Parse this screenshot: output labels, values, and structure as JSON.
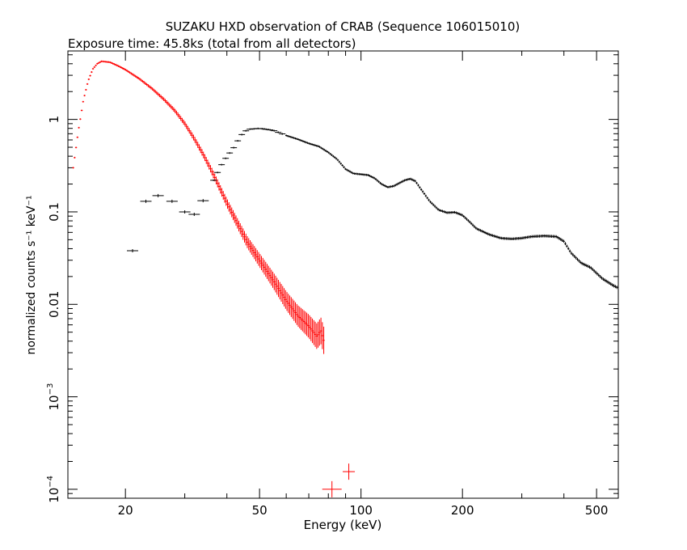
{
  "chart_data": {
    "type": "scatter",
    "title": "SUZAKU HXD observation of CRAB (Sequence 106015010)",
    "subtitle": "Exposure time: 45.8ks (total from all detectors)",
    "xlabel": "Energy (keV)",
    "ylabel": "normalized counts s⁻¹ keV⁻¹",
    "xscale": "log",
    "yscale": "log",
    "xlim": [
      13.5,
      580
    ],
    "ylim": [
      8e-05,
      5.5
    ],
    "grid": false,
    "legend": "none",
    "x_ticks": [
      {
        "value": 20,
        "label": "20"
      },
      {
        "value": 50,
        "label": "50"
      },
      {
        "value": 100,
        "label": "100"
      },
      {
        "value": 200,
        "label": "200"
      },
      {
        "value": 500,
        "label": "500"
      }
    ],
    "y_ticks": [
      {
        "value": 0.0001,
        "label": "10",
        "exp": "−4"
      },
      {
        "value": 0.001,
        "label": "10",
        "exp": "−3"
      },
      {
        "value": 0.01,
        "label": "0.01",
        "exp": ""
      },
      {
        "value": 0.1,
        "label": "0.1",
        "exp": ""
      },
      {
        "value": 1,
        "label": "1",
        "exp": ""
      }
    ],
    "series": [
      {
        "color": "#ff0000",
        "error_scale": 0.06,
        "points": [
          [
            14.0,
            0.3
          ],
          [
            14.5,
            0.75
          ],
          [
            15.0,
            1.6
          ],
          [
            15.5,
            2.6
          ],
          [
            16.0,
            3.5
          ],
          [
            16.5,
            4.0
          ],
          [
            17.0,
            4.25
          ],
          [
            18.0,
            4.15
          ],
          [
            19.0,
            3.8
          ],
          [
            20.0,
            3.45
          ],
          [
            22.0,
            2.75
          ],
          [
            24.0,
            2.15
          ],
          [
            26.0,
            1.65
          ],
          [
            28.0,
            1.25
          ],
          [
            30.0,
            0.9
          ],
          [
            32.0,
            0.62
          ],
          [
            34.0,
            0.42
          ],
          [
            36.0,
            0.28
          ],
          [
            38.0,
            0.185
          ],
          [
            40.0,
            0.125
          ],
          [
            43.0,
            0.075
          ],
          [
            46.0,
            0.047
          ],
          [
            50.0,
            0.03
          ],
          [
            55.0,
            0.018
          ],
          [
            60.0,
            0.011
          ],
          [
            65.0,
            0.0075
          ],
          [
            70.0,
            0.0058
          ],
          [
            74.0,
            0.0045
          ],
          [
            76.0,
            0.0052
          ],
          [
            78.0,
            0.0038
          ]
        ],
        "outliers": [
          [
            82.0,
            0.0001,
            4.0
          ],
          [
            92.0,
            0.000155,
            2.5
          ]
        ]
      },
      {
        "color": "#000000",
        "error_scale": 0.04,
        "points": [
          [
            21.0,
            0.038
          ],
          [
            23.0,
            0.13
          ],
          [
            25.0,
            0.15
          ],
          [
            27.5,
            0.13
          ],
          [
            30.0,
            0.1
          ],
          [
            32.0,
            0.094
          ],
          [
            34.0,
            0.132
          ],
          [
            36.5,
            0.22
          ],
          [
            39.0,
            0.35
          ],
          [
            42.0,
            0.5
          ],
          [
            44.0,
            0.67
          ],
          [
            46.0,
            0.78
          ],
          [
            50.0,
            0.8
          ],
          [
            55.0,
            0.76
          ],
          [
            60.0,
            0.67
          ],
          [
            65.0,
            0.61
          ],
          [
            70.0,
            0.55
          ],
          [
            75.0,
            0.51
          ],
          [
            80.0,
            0.44
          ],
          [
            85.0,
            0.37
          ],
          [
            90.0,
            0.29
          ],
          [
            95.0,
            0.26
          ],
          [
            100.0,
            0.255
          ],
          [
            105.0,
            0.25
          ],
          [
            110.0,
            0.23
          ],
          [
            115.0,
            0.2
          ],
          [
            120.0,
            0.185
          ],
          [
            125.0,
            0.19
          ],
          [
            130.0,
            0.205
          ],
          [
            135.0,
            0.22
          ],
          [
            140.0,
            0.228
          ],
          [
            145.0,
            0.215
          ],
          [
            150.0,
            0.18
          ],
          [
            160.0,
            0.13
          ],
          [
            170.0,
            0.105
          ],
          [
            180.0,
            0.098
          ],
          [
            190.0,
            0.099
          ],
          [
            200.0,
            0.092
          ],
          [
            210.0,
            0.078
          ],
          [
            220.0,
            0.066
          ],
          [
            240.0,
            0.057
          ],
          [
            260.0,
            0.052
          ],
          [
            280.0,
            0.051
          ],
          [
            300.0,
            0.052
          ],
          [
            320.0,
            0.054
          ],
          [
            350.0,
            0.055
          ],
          [
            380.0,
            0.054
          ],
          [
            400.0,
            0.048
          ],
          [
            420.0,
            0.036
          ],
          [
            450.0,
            0.028
          ],
          [
            480.0,
            0.025
          ],
          [
            520.0,
            0.019
          ],
          [
            560.0,
            0.016
          ],
          [
            580.0,
            0.015
          ]
        ]
      }
    ]
  }
}
